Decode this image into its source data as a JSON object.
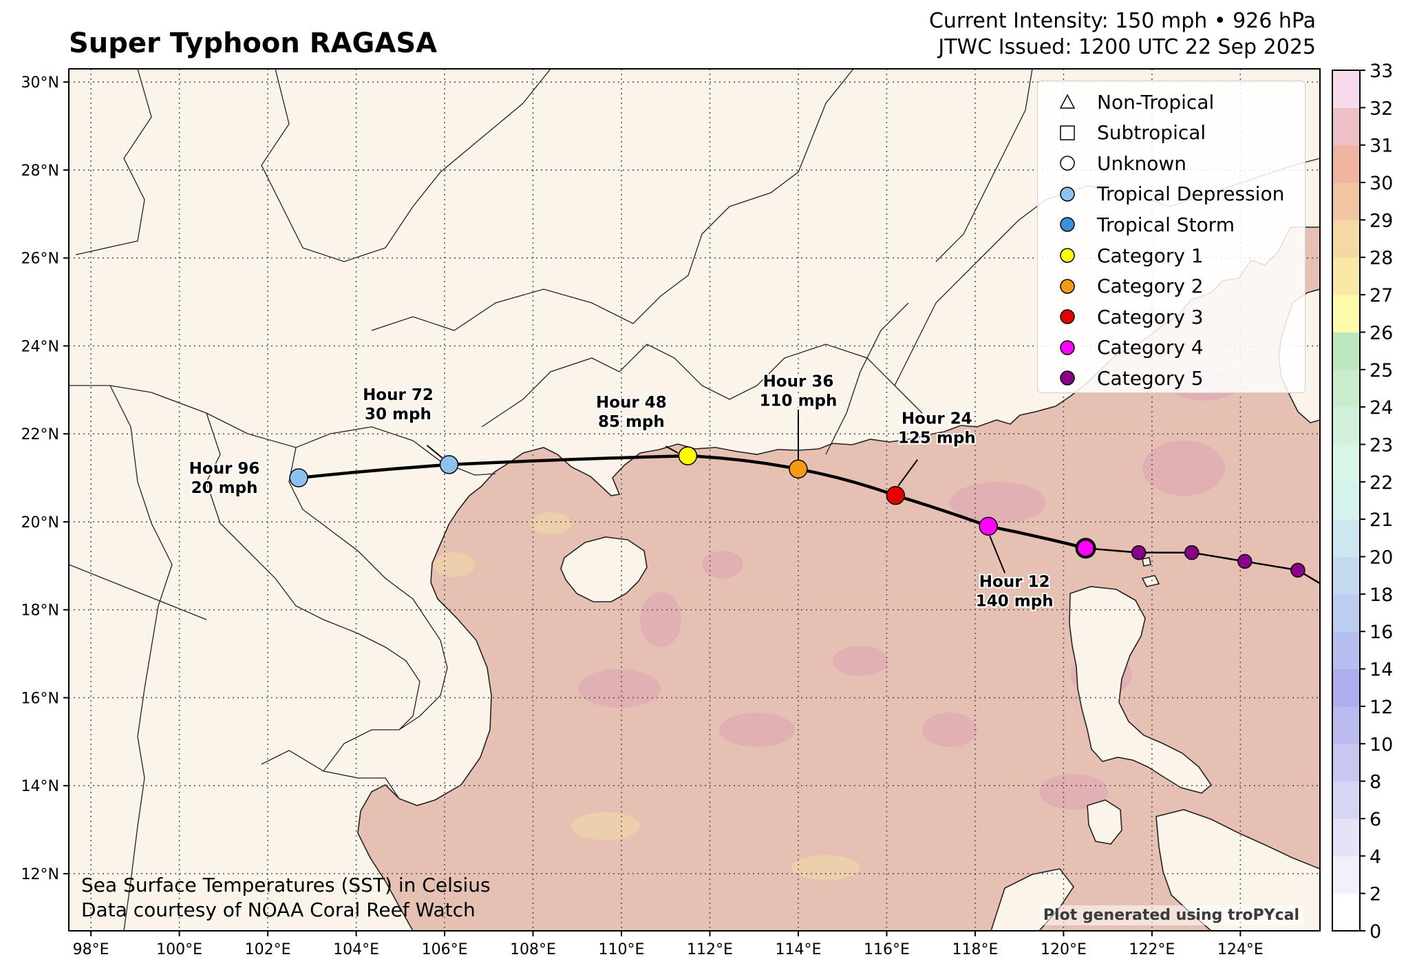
{
  "header": {
    "title": "Super Typhoon RAGASA",
    "intensity": "Current Intensity: 150 mph • 926 hPa",
    "issued": "JTWC Issued: 1200 UTC 22 Sep 2025"
  },
  "axes": {
    "lon_labels": [
      "98°E",
      "100°E",
      "102°E",
      "104°E",
      "106°E",
      "108°E",
      "110°E",
      "112°E",
      "114°E",
      "116°E",
      "118°E",
      "120°E",
      "122°E",
      "124°E"
    ],
    "lat_labels": [
      "12°N",
      "14°N",
      "16°N",
      "18°N",
      "20°N",
      "22°N",
      "24°N",
      "26°N",
      "28°N",
      "30°N"
    ],
    "lon_range": [
      97.5,
      125.8
    ],
    "lat_range": [
      10.7,
      30.3
    ]
  },
  "colorbar": {
    "ticks": [
      "0",
      "2",
      "4",
      "6",
      "8",
      "10",
      "12",
      "14",
      "16",
      "18",
      "20",
      "21",
      "22",
      "23",
      "24",
      "25",
      "26",
      "27",
      "28",
      "29",
      "30",
      "31",
      "32",
      "33"
    ],
    "colors": [
      "#ffffff",
      "#f1f0fb",
      "#e4e3f8",
      "#d6d5f5",
      "#c9c8f2",
      "#bcbbef",
      "#aeaeec",
      "#b6bff0",
      "#bdccf1",
      "#c5d9f0",
      "#cde6ef",
      "#d4f2ee",
      "#d8f5e8",
      "#d2f1da",
      "#c8edcc",
      "#bde8bd",
      "#fdfbaa",
      "#f9e9a7",
      "#f6d8a5",
      "#f2c6a3",
      "#efb5a0",
      "#f0c0c9",
      "#f7daec"
    ]
  },
  "legend": [
    {
      "label": "Non-Tropical",
      "shape": "triangle",
      "color": "#ffffff"
    },
    {
      "label": "Subtropical",
      "shape": "square",
      "color": "#ffffff"
    },
    {
      "label": "Unknown",
      "shape": "circle",
      "color": "#ffffff"
    },
    {
      "label": "Tropical Depression",
      "shape": "circle",
      "color": "#8ec2ee"
    },
    {
      "label": "Tropical Storm",
      "shape": "circle",
      "color": "#3e8fd6"
    },
    {
      "label": "Category 1",
      "shape": "circle",
      "color": "#ffff00"
    },
    {
      "label": "Category 2",
      "shape": "circle",
      "color": "#f59a12"
    },
    {
      "label": "Category 3",
      "shape": "circle",
      "color": "#e30000"
    },
    {
      "label": "Category 4",
      "shape": "circle",
      "color": "#ff00ff"
    },
    {
      "label": "Category 5",
      "shape": "circle",
      "color": "#8b0088"
    }
  ],
  "track": {
    "past": [
      {
        "lon": 125.8,
        "lat": 18.6,
        "color": "#8b0088",
        "show_marker": false
      },
      {
        "lon": 125.3,
        "lat": 18.9,
        "color": "#8b0088",
        "show_marker": true
      },
      {
        "lon": 124.1,
        "lat": 19.1,
        "color": "#8b0088",
        "show_marker": true
      },
      {
        "lon": 122.9,
        "lat": 19.3,
        "color": "#8b0088",
        "show_marker": true
      },
      {
        "lon": 121.7,
        "lat": 19.3,
        "color": "#8b0088",
        "show_marker": true
      }
    ],
    "current": {
      "lon": 120.5,
      "lat": 19.4,
      "color": "#ff00ff"
    },
    "forecast": [
      {
        "hour": "Hour 12",
        "wind": "140 mph",
        "lon": 118.3,
        "lat": 19.9,
        "color": "#ff00ff"
      },
      {
        "hour": "Hour 24",
        "wind": "125 mph",
        "lon": 116.2,
        "lat": 20.6,
        "color": "#e30000"
      },
      {
        "hour": "Hour 36",
        "wind": "110 mph",
        "lon": 114.0,
        "lat": 21.2,
        "color": "#f59a12"
      },
      {
        "hour": "Hour 48",
        "wind": "85 mph",
        "lon": 111.5,
        "lat": 21.5,
        "color": "#ffff00"
      },
      {
        "hour": "Hour 72",
        "wind": "30 mph",
        "lon": 106.1,
        "lat": 21.3,
        "color": "#8ec2ee"
      },
      {
        "hour": "Hour 96",
        "wind": "20 mph",
        "lon": 102.7,
        "lat": 21.0,
        "color": "#8ec2ee"
      }
    ]
  },
  "notes": {
    "sst_line1": "Sea Surface Temperatures (SST) in Celsius",
    "sst_line2": "Data courtesy of NOAA Coral Reef Watch",
    "credit": "Plot generated using troPYcal"
  },
  "colors": {
    "land": "#faf4ea",
    "ocean": "#e6c0b2",
    "warm_patch": "#dfadb4",
    "cool_patch": "#eed3a9"
  }
}
